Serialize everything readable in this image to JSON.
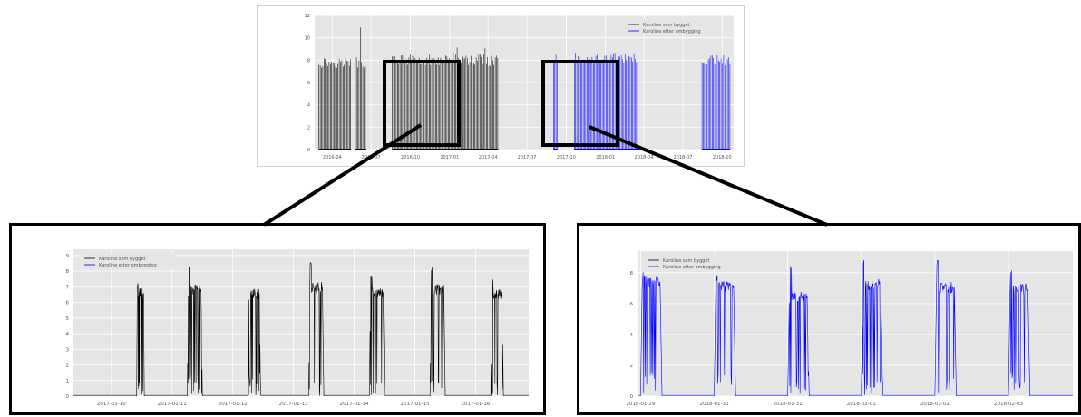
{
  "chart_data": [
    {
      "id": "overview",
      "type": "line",
      "title": "",
      "xlabel": "",
      "ylabel": "",
      "ylim": [
        0,
        12
      ],
      "yticks": [
        0,
        2,
        4,
        6,
        8,
        10,
        12
      ],
      "xticks": [
        "2016-04",
        "2016-07",
        "2016-10",
        "2017-01",
        "2017-04",
        "2017-07",
        "2017-10",
        "2018-01",
        "2018-04",
        "2018-07",
        "2018-10"
      ],
      "grid": true,
      "legend_position": "top-right",
      "series": [
        {
          "name": "Karoline som bygget",
          "color": "#000000",
          "segments": [
            {
              "from": "2016-03-01",
              "to": "2016-05-15",
              "level": 8.3
            },
            {
              "from": "2016-05-25",
              "to": "2016-06-20",
              "level": 8.3,
              "peak": 12
            },
            {
              "from": "2016-08-20",
              "to": "2017-04-25",
              "level": 8.5,
              "peak": 9.2
            }
          ]
        },
        {
          "name": "Karoline etter ombygging",
          "color": "#0000ff",
          "segments": [
            {
              "from": "2017-09-01",
              "to": "2017-09-10",
              "level": 8.8
            },
            {
              "from": "2017-10-20",
              "to": "2018-03-20",
              "level": 8.6,
              "peak": 9.1
            },
            {
              "from": "2018-08-15",
              "to": "2018-10-20",
              "level": 8.5
            }
          ]
        }
      ]
    },
    {
      "id": "zoom-som-bygget",
      "type": "line",
      "title": "",
      "xlabel": "",
      "ylabel": "",
      "ylim": [
        0,
        9.4
      ],
      "yticks": [
        0,
        1,
        2,
        3,
        4,
        5,
        6,
        7,
        8,
        9
      ],
      "xticks": [
        "2017-01-10",
        "2017-01-11",
        "2017-01-12",
        "2017-01-13",
        "2017-01-14",
        "2017-01-15",
        "2017-01-16"
      ],
      "grid": true,
      "legend_position": "top-left",
      "series": [
        {
          "name": "Karoline som bygget",
          "color": "#000000",
          "on_periods": [
            [
              "2017-01-10T10:00",
              "2017-01-10T13:00"
            ],
            [
              "2017-01-11T06:00",
              "2017-01-11T12:00"
            ],
            [
              "2017-01-12T06:00",
              "2017-01-12T11:00"
            ],
            [
              "2017-01-13T06:00",
              "2017-01-13T12:00"
            ],
            [
              "2017-01-14T06:00",
              "2017-01-14T12:00"
            ],
            [
              "2017-01-15T06:00",
              "2017-01-15T12:00"
            ],
            [
              "2017-01-16T06:00",
              "2017-01-16T11:00"
            ]
          ],
          "peak_levels": [
            7.3,
            8.6,
            8.2,
            8.8,
            8.2,
            8.4,
            7.6
          ],
          "plateau_levels": [
            6.9,
            7.2,
            6.9,
            7.3,
            7.0,
            7.2,
            6.9
          ]
        },
        {
          "name": "Karoline etter ombygging",
          "color": "#0000ff"
        }
      ]
    },
    {
      "id": "zoom-etter-ombygging",
      "type": "line",
      "title": "",
      "xlabel": "",
      "ylabel": "",
      "ylim": [
        0,
        9.4
      ],
      "yticks": [
        0,
        2,
        4,
        6,
        8
      ],
      "xticks": [
        "2018-01-29",
        "2018-01-30",
        "2018-01-31",
        "2018-02-01",
        "2018-02-02",
        "2018-02-03"
      ],
      "grid": true,
      "legend_position": "top-left",
      "series": [
        {
          "name": "Karoline som bygget",
          "color": "#000000"
        },
        {
          "name": "Karoline etter ombygging",
          "color": "#0000ff",
          "on_periods": [
            [
              "2018-01-29T00:00",
              "2018-01-29T07:00"
            ],
            [
              "2018-01-30T00:00",
              "2018-01-30T07:00"
            ],
            [
              "2018-01-31T00:00",
              "2018-01-31T07:00"
            ],
            [
              "2018-02-01T00:00",
              "2018-02-01T07:00"
            ],
            [
              "2018-02-02T00:00",
              "2018-02-02T07:00"
            ],
            [
              "2018-02-03T00:00",
              "2018-02-03T07:00"
            ]
          ],
          "peak_levels": [
            8.1,
            8.0,
            8.9,
            9.2,
            9.2,
            8.6
          ],
          "plateau_levels": [
            7.8,
            7.5,
            6.8,
            7.6,
            7.4,
            7.3
          ]
        }
      ]
    }
  ]
}
